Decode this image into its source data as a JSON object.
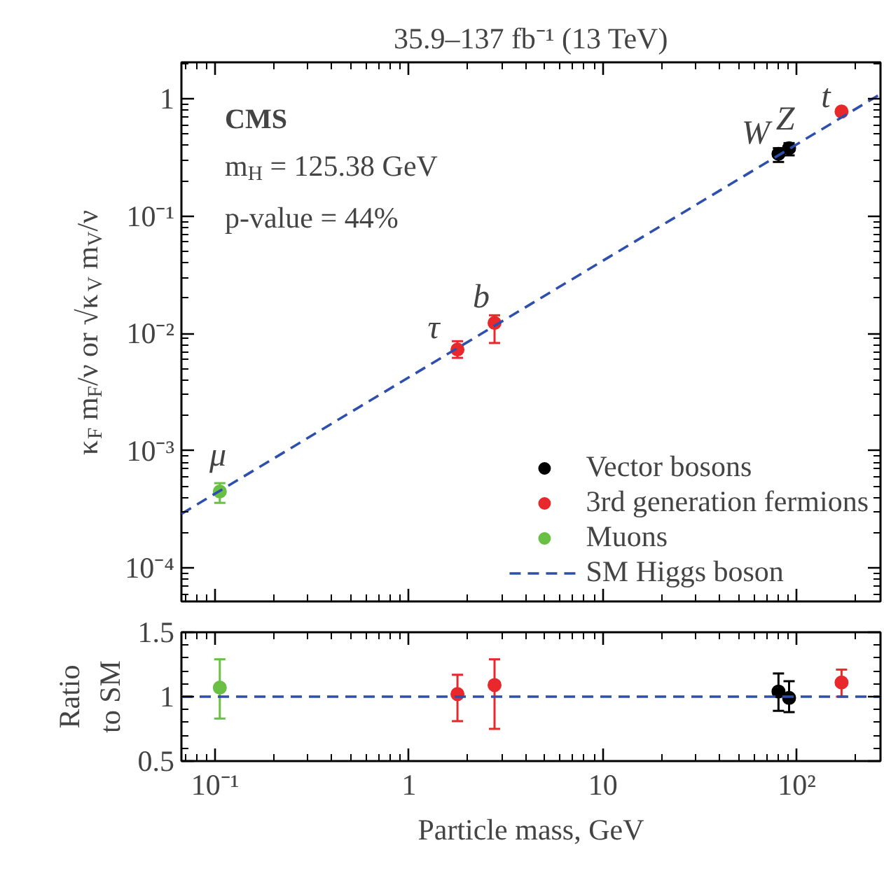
{
  "chart_data": [
    {
      "type": "scatter",
      "title": "35.9–137 fb⁻¹ (13 TeV)",
      "ylabel": "κ$_{F}$ m$_{F}$/ν or √κ$_{V}$ m$_{V}$/ν",
      "annotations": [
        "CMS",
        "m$_{H}$ = 125.38 GeV",
        "p-value = 44%",
        "μ",
        "τ",
        "b",
        "W",
        "Z",
        "t"
      ],
      "series": [
        {
          "name": "Vector bosons",
          "color": "#000000",
          "x": [
            80.4,
            91.19
          ],
          "values": [
            0.34,
            0.38
          ],
          "errors": [
            [
              0.29,
              0.38
            ],
            [
              0.33,
              0.42
            ]
          ]
        },
        {
          "name": "3rd generation fermions",
          "color": "#e8282b",
          "x": [
            1.777,
            2.76,
            170
          ],
          "values": [
            0.0073,
            0.0123,
            0.78
          ],
          "errors": [
            [
              0.0062,
              0.0086
            ],
            [
              0.0083,
              0.0143
            ],
            [
              0.74,
              0.82
            ]
          ]
        },
        {
          "name": "Muons",
          "color": "#6abf45",
          "x": [
            0.1057
          ],
          "values": [
            0.00045
          ],
          "errors": [
            [
              0.00036,
              0.00053
            ]
          ]
        },
        {
          "name": "SM Higgs boson",
          "type": "line",
          "marker": "none",
          "color": "#2e4fad",
          "line_style": "dashed",
          "x": [
            0.067,
            270
          ],
          "values": [
            0.00029,
            1.1
          ]
        }
      ],
      "xlim": [
        0.067,
        270
      ],
      "ylim": [
        5.2e-05,
        2.05
      ],
      "yticks": [
        {
          "value": 0.0001,
          "label": "10⁻⁴"
        },
        {
          "value": 0.001,
          "label": "10⁻³"
        },
        {
          "value": 0.01,
          "label": "10⁻²"
        },
        {
          "value": 0.1,
          "label": "10⁻¹"
        },
        1
      ],
      "log": "xy",
      "grid": false,
      "legend": "bottom right",
      "marker": "circle",
      "tick_labels": "y"
    },
    {
      "type": "scatter",
      "xlabel": "Particle mass, GeV",
      "ylabel": "Ratio\nto SM",
      "series": [
        {
          "color": "#000000",
          "x": [
            80.4,
            91.19
          ],
          "values": [
            1.04,
            0.99
          ],
          "errors": [
            [
              0.89,
              1.18
            ],
            [
              0.88,
              1.12
            ]
          ]
        },
        {
          "color": "#e8282b",
          "x": [
            1.777,
            2.76,
            170
          ],
          "values": [
            1.02,
            1.09,
            1.11
          ],
          "errors": [
            [
              0.81,
              1.17
            ],
            [
              0.75,
              1.29
            ],
            [
              1.0,
              1.21
            ]
          ]
        },
        {
          "color": "#6abf45",
          "x": [
            0.1057
          ],
          "values": [
            1.07
          ],
          "errors": [
            [
              0.83,
              1.29
            ]
          ]
        },
        {
          "type": "line",
          "marker": "none",
          "color": "#2e4fad",
          "line_style": "dashed",
          "x": [
            0.067,
            270
          ],
          "values": [
            1,
            1
          ]
        }
      ],
      "xlim": [
        0.067,
        270
      ],
      "ylim": [
        0.5,
        1.5
      ],
      "xticks": [
        {
          "value": 0.1,
          "label": "10⁻¹"
        },
        1,
        10,
        {
          "value": 100,
          "label": "10²"
        }
      ],
      "yticks": [
        0.5,
        1,
        1.5
      ],
      "log": "x",
      "grid": false,
      "marker": "circle"
    }
  ]
}
